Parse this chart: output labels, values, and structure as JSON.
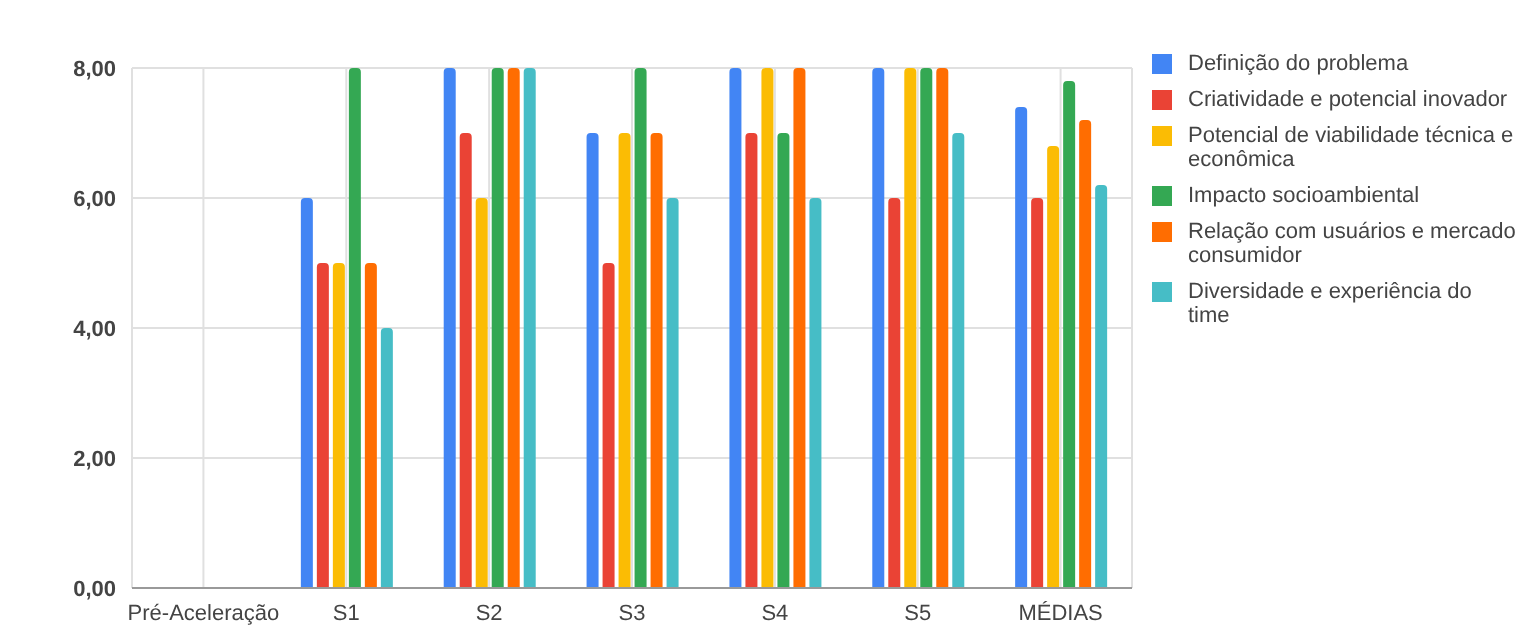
{
  "chart_data": {
    "type": "bar",
    "categories": [
      "Pré-Aceleração",
      "S1",
      "S2",
      "S3",
      "S4",
      "S5",
      "MÉDIAS"
    ],
    "series": [
      {
        "name": "Definição do problema",
        "color": "#4285f4",
        "values": [
          null,
          6,
          8,
          7,
          8,
          8,
          7.4
        ]
      },
      {
        "name": "Criatividade e potencial inovador",
        "color": "#ea4335",
        "values": [
          null,
          5,
          7,
          5,
          7,
          6,
          6
        ]
      },
      {
        "name": "Potencial de viabilidade técnica e econômica",
        "color": "#fbbc04",
        "values": [
          null,
          5,
          6,
          7,
          8,
          8,
          6.8
        ]
      },
      {
        "name": "Impacto socioambiental",
        "color": "#34a853",
        "values": [
          null,
          8,
          8,
          8,
          7,
          8,
          7.8
        ]
      },
      {
        "name": "Relação com usuários e mercado consumidor",
        "color": "#ff6d01",
        "values": [
          null,
          5,
          8,
          7,
          8,
          8,
          7.2
        ]
      },
      {
        "name": "Diversidade e experiência do time",
        "color": "#46bdc6",
        "values": [
          null,
          4,
          8,
          6,
          6,
          7,
          6.2
        ]
      }
    ],
    "ylim": [
      0,
      8
    ],
    "yticks": [
      {
        "value": 0,
        "label": "0,00"
      },
      {
        "value": 2,
        "label": "2,00"
      },
      {
        "value": 4,
        "label": "4,00"
      },
      {
        "value": 6,
        "label": "6,00"
      },
      {
        "value": 8,
        "label": "8,00"
      }
    ],
    "grid": true,
    "legend": "right"
  }
}
